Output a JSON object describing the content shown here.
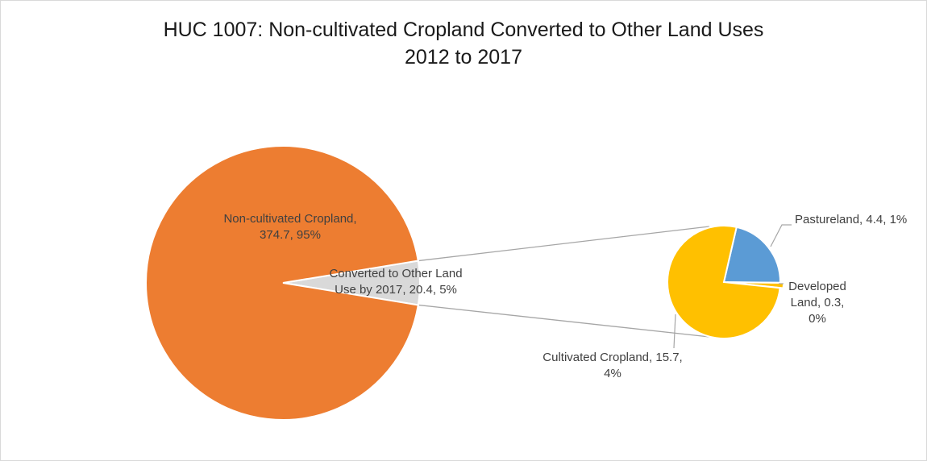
{
  "chart_data": {
    "type": "pie",
    "title_lines": [
      "HUC 1007: Non-cultivated Cropland Converted to Other Land Uses",
      "2012 to 2017"
    ],
    "main_pie": {
      "slices": [
        {
          "label": "Non-cultivated Cropland",
          "value": 374.7,
          "percent": "95%",
          "color": "#ED7D31",
          "label_lines": [
            "Non-cultivated Cropland,",
            "374.7, 95%"
          ]
        },
        {
          "label": "Converted to Other Land Use by 2017",
          "value": 20.4,
          "percent": "5%",
          "color": "#D9D9D9",
          "label_lines": [
            "Converted to Other Land",
            "Use by 2017, 20.4, 5%"
          ]
        }
      ]
    },
    "secondary_pie": {
      "slices": [
        {
          "label": "Pastureland",
          "value": 4.4,
          "percent": "1%",
          "color": "#5B9BD5",
          "label_lines": [
            "Pastureland, 4.4, 1%"
          ]
        },
        {
          "label": "Developed Land",
          "value": 0.3,
          "percent": "0%",
          "color": "#FFC000",
          "label_lines": [
            "Developed",
            "Land, 0.3,",
            "0%"
          ]
        },
        {
          "label": "Cultivated Cropland",
          "value": 15.7,
          "percent": "4%",
          "color": "#FFC000",
          "label_lines": [
            "Cultivated Cropland, 15.7,",
            "4%"
          ]
        }
      ]
    }
  }
}
